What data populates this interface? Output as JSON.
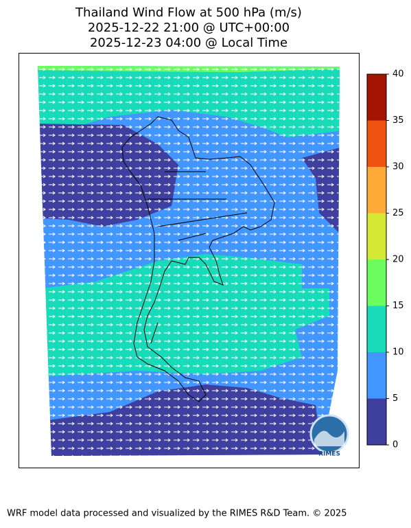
{
  "title": [
    "Thailand Wind Flow at 500 hPa (m/s)",
    "2025-12-22 21:00 @ UTC+00:00",
    "2025-12-23 04:00 @ Local Time"
  ],
  "colorbar": {
    "ticks": [
      0,
      5,
      10,
      15,
      20,
      25,
      30,
      35,
      40
    ],
    "colors": [
      "#3f3f9f",
      "#4196ff",
      "#19dbba",
      "#6cfe5f",
      "#d4e834",
      "#feaa38",
      "#ee5410",
      "#a31500"
    ]
  },
  "logo": "RIMES",
  "footer": "WRF model data processed and visualized by the RIMES R&D Team. © 2025"
}
